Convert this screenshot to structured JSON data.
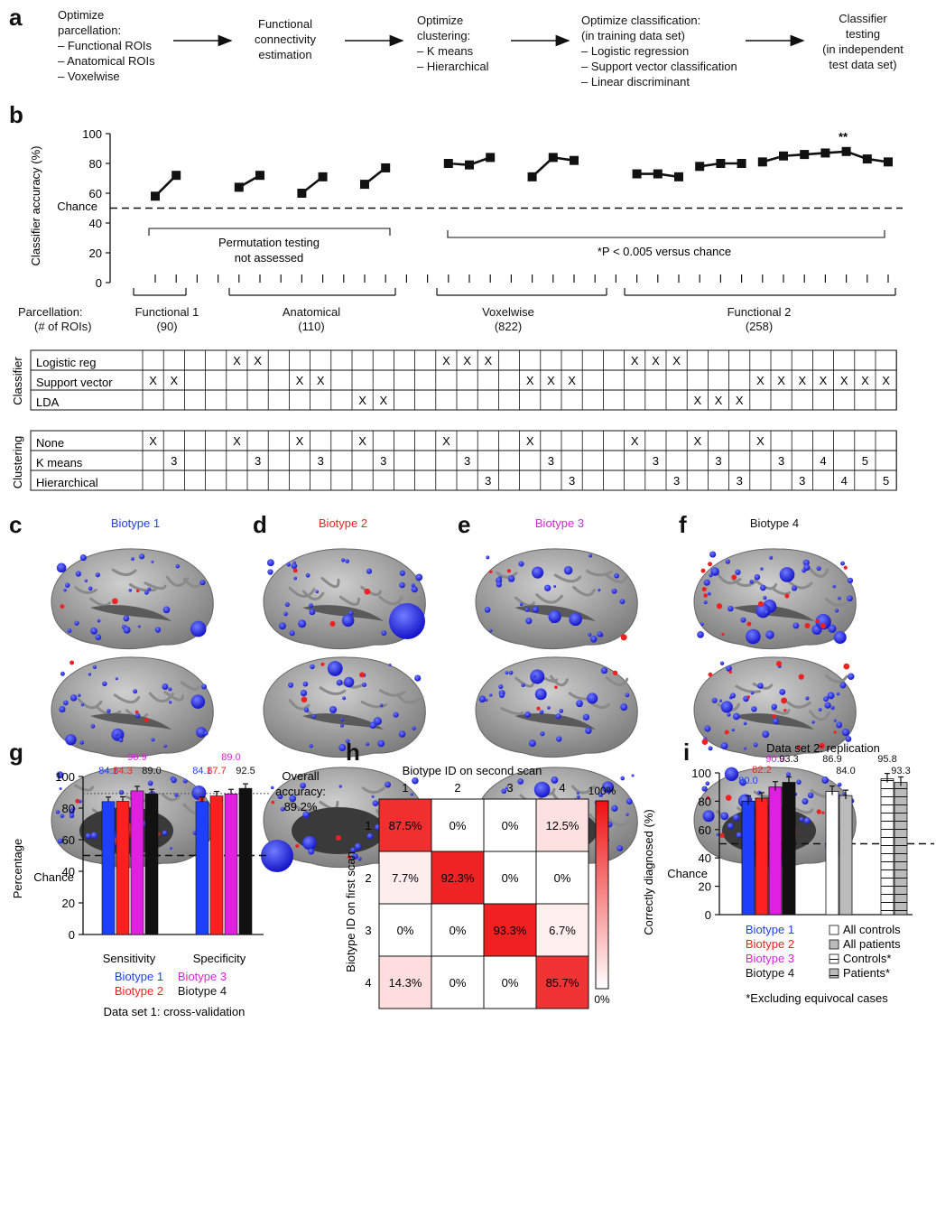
{
  "panels": {
    "a": "a",
    "b": "b",
    "c": "c",
    "d": "d",
    "e": "e",
    "f": "f",
    "g": "g",
    "h": "h",
    "i": "i"
  },
  "pipeline": {
    "step1": {
      "title1": "Optimize",
      "title2": "parcellation:",
      "items": [
        "– Functional ROIs",
        "– Anatomical ROIs",
        "– Voxelwise"
      ]
    },
    "step2": {
      "lines": [
        "Functional",
        "connectivity",
        "estimation"
      ]
    },
    "step3": {
      "title1": "Optimize",
      "title2": "clustering:",
      "items": [
        "– K means",
        "– Hierarchical"
      ]
    },
    "step4": {
      "title1": "Optimize classification:",
      "title2": "(in training data set)",
      "items": [
        "– Logistic regression",
        "– Support vector classification",
        "– Linear discriminant"
      ]
    },
    "step5": {
      "lines": [
        "Classifier",
        "testing",
        "(in independent",
        "test data set)"
      ]
    }
  },
  "panel_b": {
    "ylabel": "Classifier accuracy (%)",
    "yticks": [
      "100",
      "80",
      "60",
      "40",
      "20",
      "0"
    ],
    "chance_label": "Chance",
    "annot_left": [
      "Permutation testing",
      "not assessed"
    ],
    "annot_right": "*P < 0.005 versus chance",
    "star": "**",
    "parcellation_label": [
      "Parcellation:",
      "(# of ROIs)"
    ],
    "groups": [
      {
        "name": "Functional 1",
        "count": "(90)"
      },
      {
        "name": "Anatomical",
        "count": "(110)"
      },
      {
        "name": "Voxelwise",
        "count": "(822)"
      },
      {
        "name": "Functional 2",
        "count": "(258)"
      }
    ],
    "classifier_label": "Classifier",
    "classifier_rows": [
      "Logistic reg",
      "Support vector",
      "LDA"
    ],
    "clustering_label": "Clustering",
    "clustering_rows": [
      "None",
      "K means",
      "Hierarchical"
    ]
  },
  "chart_data": [
    {
      "type": "line",
      "title": "",
      "ylabel": "Classifier accuracy (%)",
      "ylim": [
        0,
        100
      ],
      "chance": 50,
      "series": [
        {
          "values": [
            58,
            72
          ]
        },
        {
          "values": [
            64,
            72
          ]
        },
        {
          "values": [
            60,
            71
          ]
        },
        {
          "values": [
            66,
            77
          ]
        },
        {
          "values": [
            80,
            79,
            84
          ]
        },
        {
          "values": [
            71,
            84,
            82
          ]
        },
        {
          "values": [
            73,
            73,
            71
          ]
        },
        {
          "values": [
            78,
            80,
            80
          ]
        },
        {
          "values": [
            81,
            85,
            86,
            87,
            88,
            83,
            81
          ]
        }
      ]
    },
    {
      "type": "bar",
      "categories": [
        "Sensitivity",
        "Specificity"
      ],
      "ylabel": "Percentage",
      "ylim": [
        0,
        100
      ],
      "chance": 50,
      "overall_accuracy": 89.2,
      "series": [
        {
          "name": "Biotype 1",
          "values": [
            84.1,
            84.1
          ]
        },
        {
          "name": "Biotype 2",
          "values": [
            84.3,
            87.7
          ]
        },
        {
          "name": "Biotype 3",
          "values": [
            90.9,
            89.0
          ]
        },
        {
          "name": "Biotype 4",
          "values": [
            89.0,
            92.5
          ]
        }
      ]
    },
    {
      "type": "heatmap",
      "xlabel": "Biotype ID on second scan",
      "ylabel": "Biotype ID on first scan",
      "categories": [
        "1",
        "2",
        "3",
        "4"
      ],
      "values": [
        [
          87.5,
          0,
          0,
          12.5
        ],
        [
          7.7,
          92.3,
          0,
          0
        ],
        [
          0,
          0,
          93.3,
          6.7
        ],
        [
          14.3,
          0,
          0,
          85.7
        ]
      ]
    },
    {
      "type": "bar",
      "title": "Data set 2: replication",
      "ylabel": "Correctly diagnosed (%)",
      "ylim": [
        0,
        100
      ],
      "chance": 50,
      "series": [
        {
          "name": "Biotype 1",
          "values": [
            80.0
          ]
        },
        {
          "name": "Biotype 2",
          "values": [
            82.2
          ]
        },
        {
          "name": "Biotype 3",
          "values": [
            90.0
          ]
        },
        {
          "name": "Biotype 4",
          "values": [
            93.3
          ]
        },
        {
          "name": "All controls",
          "values": [
            86.9
          ]
        },
        {
          "name": "All patients",
          "values": [
            84.0
          ]
        },
        {
          "name": "Controls*",
          "values": [
            95.8
          ]
        },
        {
          "name": "Patients*",
          "values": [
            93.3
          ]
        }
      ]
    }
  ],
  "biotypes": {
    "c": "Biotype 1",
    "d": "Biotype 2",
    "e": "Biotype 3",
    "f": "Biotype 4",
    "colors": {
      "b1": "#1f3fff",
      "b2": "#ff2020",
      "b3": "#e020e0",
      "b4": "#111111"
    }
  },
  "panel_g": {
    "labels": [
      "84.1",
      "84.3",
      "90.9",
      "89.0",
      "84.1",
      "87.7",
      "89.0",
      "92.5"
    ],
    "overall": [
      "Overall",
      "accuracy:",
      "89.2%"
    ],
    "categories": [
      "Sensitivity",
      "Specificity"
    ],
    "legend": [
      "Biotype 1",
      "Biotype 2",
      "Biotype 3",
      "Biotype 4"
    ],
    "caption": "Data set 1: cross-validation",
    "yticks": [
      "100",
      "80",
      "60",
      "40",
      "20",
      "0"
    ],
    "chance_label": "Chance",
    "ylabel": "Percentage"
  },
  "panel_h": {
    "xlabel": "Biotype ID on second scan",
    "ylabel": "Biotype ID on first scan",
    "ids": [
      "1",
      "2",
      "3",
      "4"
    ],
    "cells": [
      [
        "87.5%",
        "0%",
        "0%",
        "12.5%"
      ],
      [
        "7.7%",
        "92.3%",
        "0%",
        "0%"
      ],
      [
        "0%",
        "0%",
        "93.3%",
        "6.7%"
      ],
      [
        "14.3%",
        "0%",
        "0%",
        "85.7%"
      ]
    ],
    "scale_top": "100%",
    "scale_bottom": "0%"
  },
  "panel_i": {
    "title": "Data set 2: replication",
    "ylabel": "Correctly diagnosed (%)",
    "yticks": [
      "100",
      "80",
      "60",
      "40",
      "20",
      "0"
    ],
    "chance_label": "Chance",
    "labels": [
      "80.0",
      "82.2",
      "90.0",
      "93.3",
      "86.9",
      "84.0",
      "95.8",
      "93.3"
    ],
    "legend_left": [
      "Biotype 1",
      "Biotype 2",
      "Biotype 3",
      "Biotype 4"
    ],
    "legend_right": [
      "All controls",
      "All patients",
      "Controls*",
      "Patients*"
    ],
    "footnote": "*Excluding equivocal cases"
  }
}
